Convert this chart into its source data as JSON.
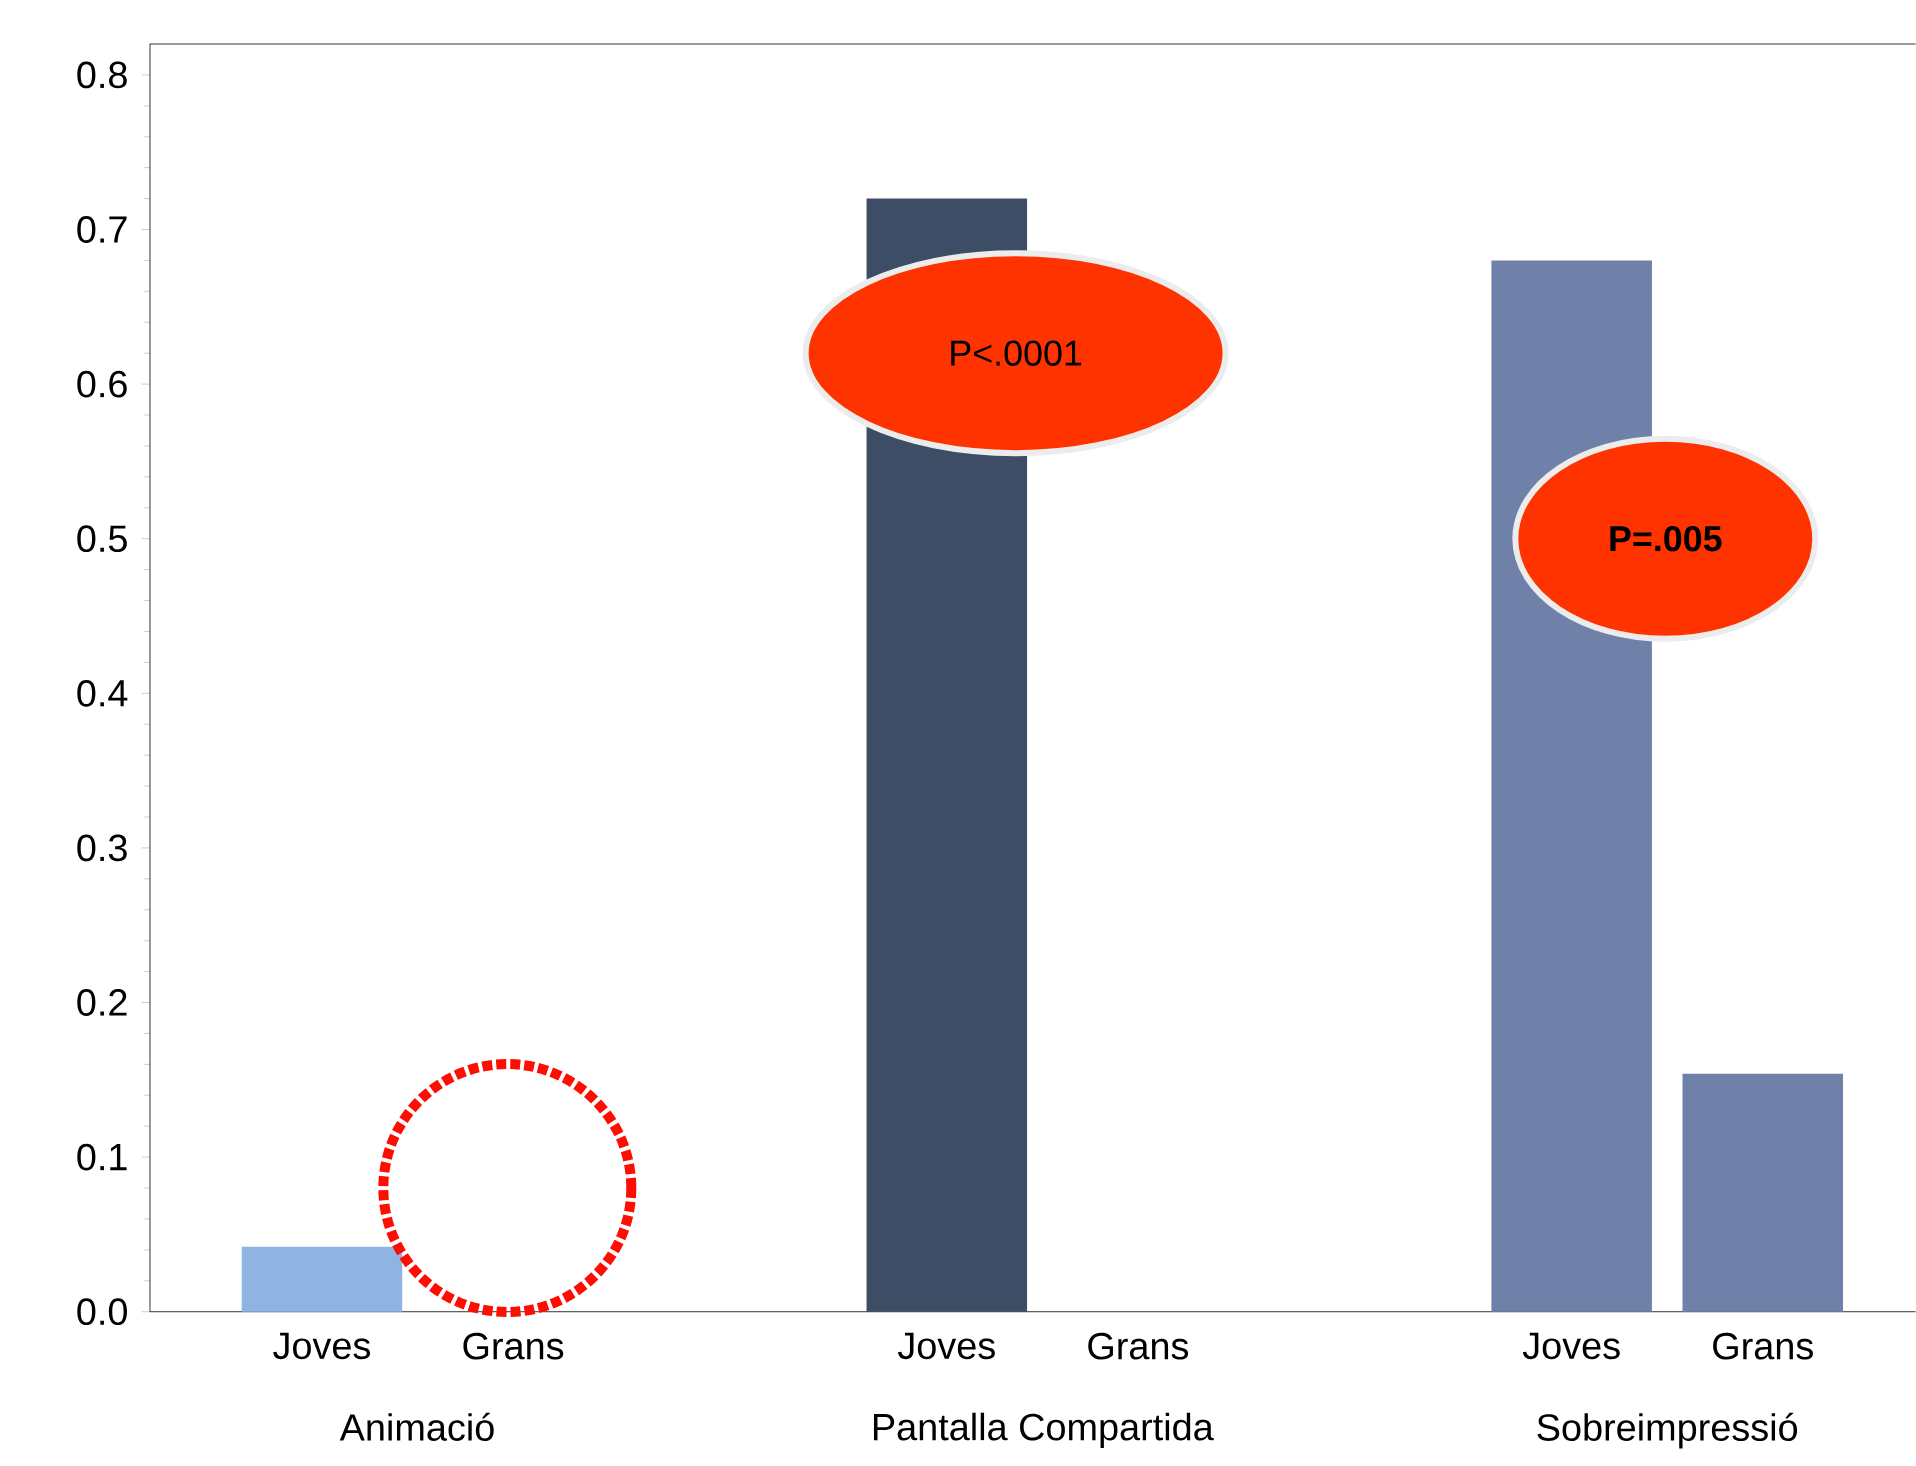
{
  "chart_data": {
    "type": "bar",
    "categories": [
      "Animació",
      "Pantalla Compartida",
      "Sobreimpressió"
    ],
    "series": [
      {
        "name": "Joves",
        "colors": [
          "#8fb4e3",
          "#3d4d66",
          "#6f81a8"
        ],
        "values": [
          0.042,
          0.72,
          0.68
        ]
      },
      {
        "name": "Grans",
        "color": "#6f81a8",
        "values": [
          0,
          0,
          0.154
        ]
      }
    ],
    "ylim": [
      0,
      0.82
    ],
    "yticks": [
      {
        "value": 0,
        "label": "0.0"
      },
      0.1,
      0.2,
      0.3,
      0.4,
      0.5,
      0.6,
      0.7,
      0.8
    ],
    "annotations": [
      "P<.0001",
      "P=.005"
    ]
  }
}
